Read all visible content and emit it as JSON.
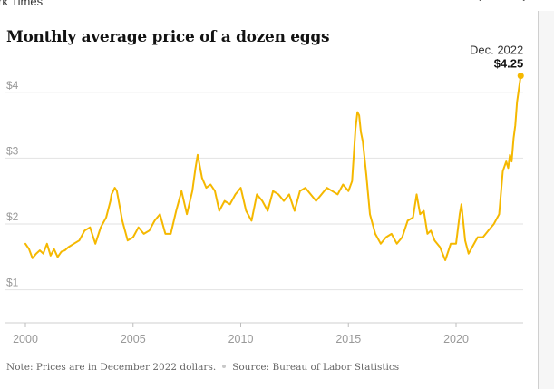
{
  "header": {
    "site_name": "rk Times",
    "nav_prev_icon": "chevron-left-icon",
    "nav_next_icon": "chevron-right-icon"
  },
  "chart_data": {
    "type": "line",
    "title": "Monthly average price of a dozen eggs",
    "xlabel": "",
    "ylabel": "",
    "xlim": [
      1999.5,
      2023.1
    ],
    "ylim": [
      0.5,
      4.3
    ],
    "y_ticks": [
      {
        "value": 1,
        "label": "$1"
      },
      {
        "value": 2,
        "label": "$2"
      },
      {
        "value": 3,
        "label": "$3"
      },
      {
        "value": 4,
        "label": "$4"
      }
    ],
    "x_ticks": [
      {
        "value": 2000,
        "label": "2000"
      },
      {
        "value": 2005,
        "label": "2005"
      },
      {
        "value": 2010,
        "label": "2010"
      },
      {
        "value": 2015,
        "label": "2015"
      },
      {
        "value": 2020,
        "label": "2020"
      }
    ],
    "grid": "horizontal",
    "line_color": "#f5b800",
    "grid_color": "#e2e2e2",
    "series": [
      {
        "x": [
          2000.0,
          2000.17,
          2000.33,
          2000.5,
          2000.67,
          2000.83,
          2001.0,
          2001.17,
          2001.33,
          2001.5,
          2001.67,
          2001.83,
          2002.0,
          2002.25,
          2002.5,
          2002.75,
          2003.0,
          2003.25,
          2003.5,
          2003.75,
          2003.95,
          2004.0,
          2004.15,
          2004.25,
          2004.5,
          2004.75,
          2005.0,
          2005.25,
          2005.5,
          2005.75,
          2006.0,
          2006.25,
          2006.5,
          2006.75,
          2007.0,
          2007.25,
          2007.5,
          2007.75,
          2007.9,
          2008.0,
          2008.2,
          2008.4,
          2008.6,
          2008.8,
          2009.0,
          2009.25,
          2009.5,
          2009.75,
          2010.0,
          2010.25,
          2010.5,
          2010.75,
          2011.0,
          2011.25,
          2011.5,
          2011.75,
          2012.0,
          2012.25,
          2012.5,
          2012.75,
          2013.0,
          2013.25,
          2013.5,
          2013.75,
          2014.0,
          2014.25,
          2014.5,
          2014.75,
          2015.0,
          2015.17,
          2015.33,
          2015.42,
          2015.5,
          2015.58,
          2015.67,
          2015.83,
          2016.0,
          2016.25,
          2016.5,
          2016.75,
          2017.0,
          2017.25,
          2017.5,
          2017.75,
          2018.0,
          2018.17,
          2018.33,
          2018.5,
          2018.67,
          2018.83,
          2019.0,
          2019.25,
          2019.5,
          2019.75,
          2020.0,
          2020.17,
          2020.25,
          2020.42,
          2020.58,
          2020.75,
          2021.0,
          2021.25,
          2021.5,
          2021.75,
          2022.0,
          2022.17,
          2022.33,
          2022.42,
          2022.5,
          2022.58,
          2022.67,
          2022.75,
          2022.83,
          2023.0
        ],
        "values": [
          1.7,
          1.62,
          1.48,
          1.55,
          1.6,
          1.55,
          1.7,
          1.52,
          1.62,
          1.5,
          1.58,
          1.6,
          1.65,
          1.7,
          1.75,
          1.9,
          1.95,
          1.7,
          1.95,
          2.1,
          2.35,
          2.45,
          2.55,
          2.5,
          2.05,
          1.75,
          1.8,
          1.95,
          1.85,
          1.9,
          2.05,
          2.15,
          1.85,
          1.85,
          2.2,
          2.5,
          2.15,
          2.5,
          2.85,
          3.05,
          2.7,
          2.55,
          2.6,
          2.5,
          2.2,
          2.35,
          2.3,
          2.45,
          2.55,
          2.2,
          2.05,
          2.45,
          2.35,
          2.2,
          2.5,
          2.45,
          2.35,
          2.45,
          2.2,
          2.5,
          2.55,
          2.45,
          2.35,
          2.45,
          2.55,
          2.5,
          2.45,
          2.6,
          2.5,
          2.65,
          3.45,
          3.7,
          3.65,
          3.4,
          3.25,
          2.75,
          2.15,
          1.85,
          1.7,
          1.8,
          1.85,
          1.7,
          1.8,
          2.05,
          2.1,
          2.45,
          2.15,
          2.2,
          1.85,
          1.9,
          1.75,
          1.65,
          1.45,
          1.7,
          1.7,
          2.15,
          2.3,
          1.75,
          1.55,
          1.65,
          1.8,
          1.8,
          1.9,
          2.0,
          2.15,
          2.8,
          2.95,
          2.85,
          3.05,
          2.95,
          3.3,
          3.5,
          3.85,
          4.25
        ]
      }
    ],
    "annotations": [
      {
        "x": 2023.0,
        "y": 4.25,
        "label": "Dec. 2022",
        "value_label": "$4.25"
      }
    ]
  },
  "footnote": {
    "note": "Note: Prices are in December 2022 dollars.",
    "source": "Source: Bureau of Labor Statistics"
  }
}
